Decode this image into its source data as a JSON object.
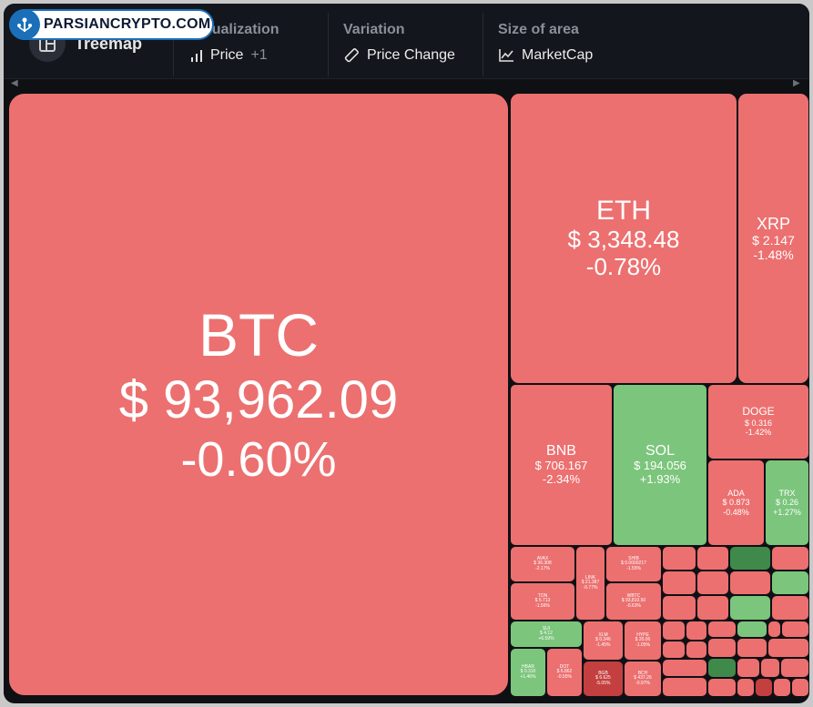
{
  "logo": {
    "text": "PARSIANCRYPTO.COM"
  },
  "toolbar": {
    "title": "Treemap",
    "visualization": {
      "label": "Visualization",
      "value": "Price",
      "extra": "+1"
    },
    "variation": {
      "label": "Variation",
      "value": "Price Change"
    },
    "size_of_area": {
      "label": "Size of area",
      "value": "MarketCap"
    }
  },
  "colors": {
    "up": "#7cc57c",
    "down": "#ec7070",
    "strong_down": "#c43f3f",
    "strong_up": "#3f8a4b"
  },
  "tiles": {
    "btc": {
      "symbol": "BTC",
      "price": "$ 93,962.09",
      "change": "-0.60%"
    },
    "eth": {
      "symbol": "ETH",
      "price": "$ 3,348.48",
      "change": "-0.78%"
    },
    "xrp": {
      "symbol": "XRP",
      "price": "$ 2.147",
      "change": "-1.48%"
    },
    "bnb": {
      "symbol": "BNB",
      "price": "$ 706.167",
      "change": "-2.34%"
    },
    "sol": {
      "symbol": "SOL",
      "price": "$ 194.056",
      "change": "+1.93%"
    },
    "doge": {
      "symbol": "DOGE",
      "price": "$ 0.316",
      "change": "-1.42%"
    },
    "ada": {
      "symbol": "ADA",
      "price": "$ 0.873",
      "change": "-0.48%"
    },
    "trx": {
      "symbol": "TRX",
      "price": "$ 0.26",
      "change": "+1.27%"
    },
    "avax": {
      "symbol": "AVAX",
      "price": "$ 36.308",
      "change": "-2.17%"
    },
    "ton": {
      "symbol": "TON",
      "price": "$ 5.713",
      "change": "-1.56%"
    },
    "link": {
      "symbol": "LINK",
      "price": "$ 21.387",
      "change": "-0.77%"
    },
    "shib": {
      "symbol": "SHIB",
      "price": "$ 0.0000217",
      "change": "-1.55%"
    },
    "wbtc": {
      "symbol": "WBTC",
      "price": "$ 93,810.50",
      "change": "-0.63%"
    },
    "sui": {
      "symbol": "SUI",
      "price": "$ 4.12",
      "change": "+6.59%"
    },
    "hbar": {
      "symbol": "HBAR",
      "price": "$ 0.310",
      "change": "+1.46%"
    },
    "dot": {
      "symbol": "DOT",
      "price": "$ 6.862",
      "change": "-0.55%"
    },
    "xlm": {
      "symbol": "XLM",
      "price": "$ 0.346",
      "change": "-1.45%"
    },
    "bgb": {
      "symbol": "BGB",
      "price": "$ 6.625",
      "change": "-5.05%"
    },
    "hype": {
      "symbol": "HYPE",
      "price": "$ 20.06",
      "change": "-1.05%"
    },
    "bch": {
      "symbol": "BCH",
      "price": "$ 437.26",
      "change": "-0.97%"
    }
  }
}
